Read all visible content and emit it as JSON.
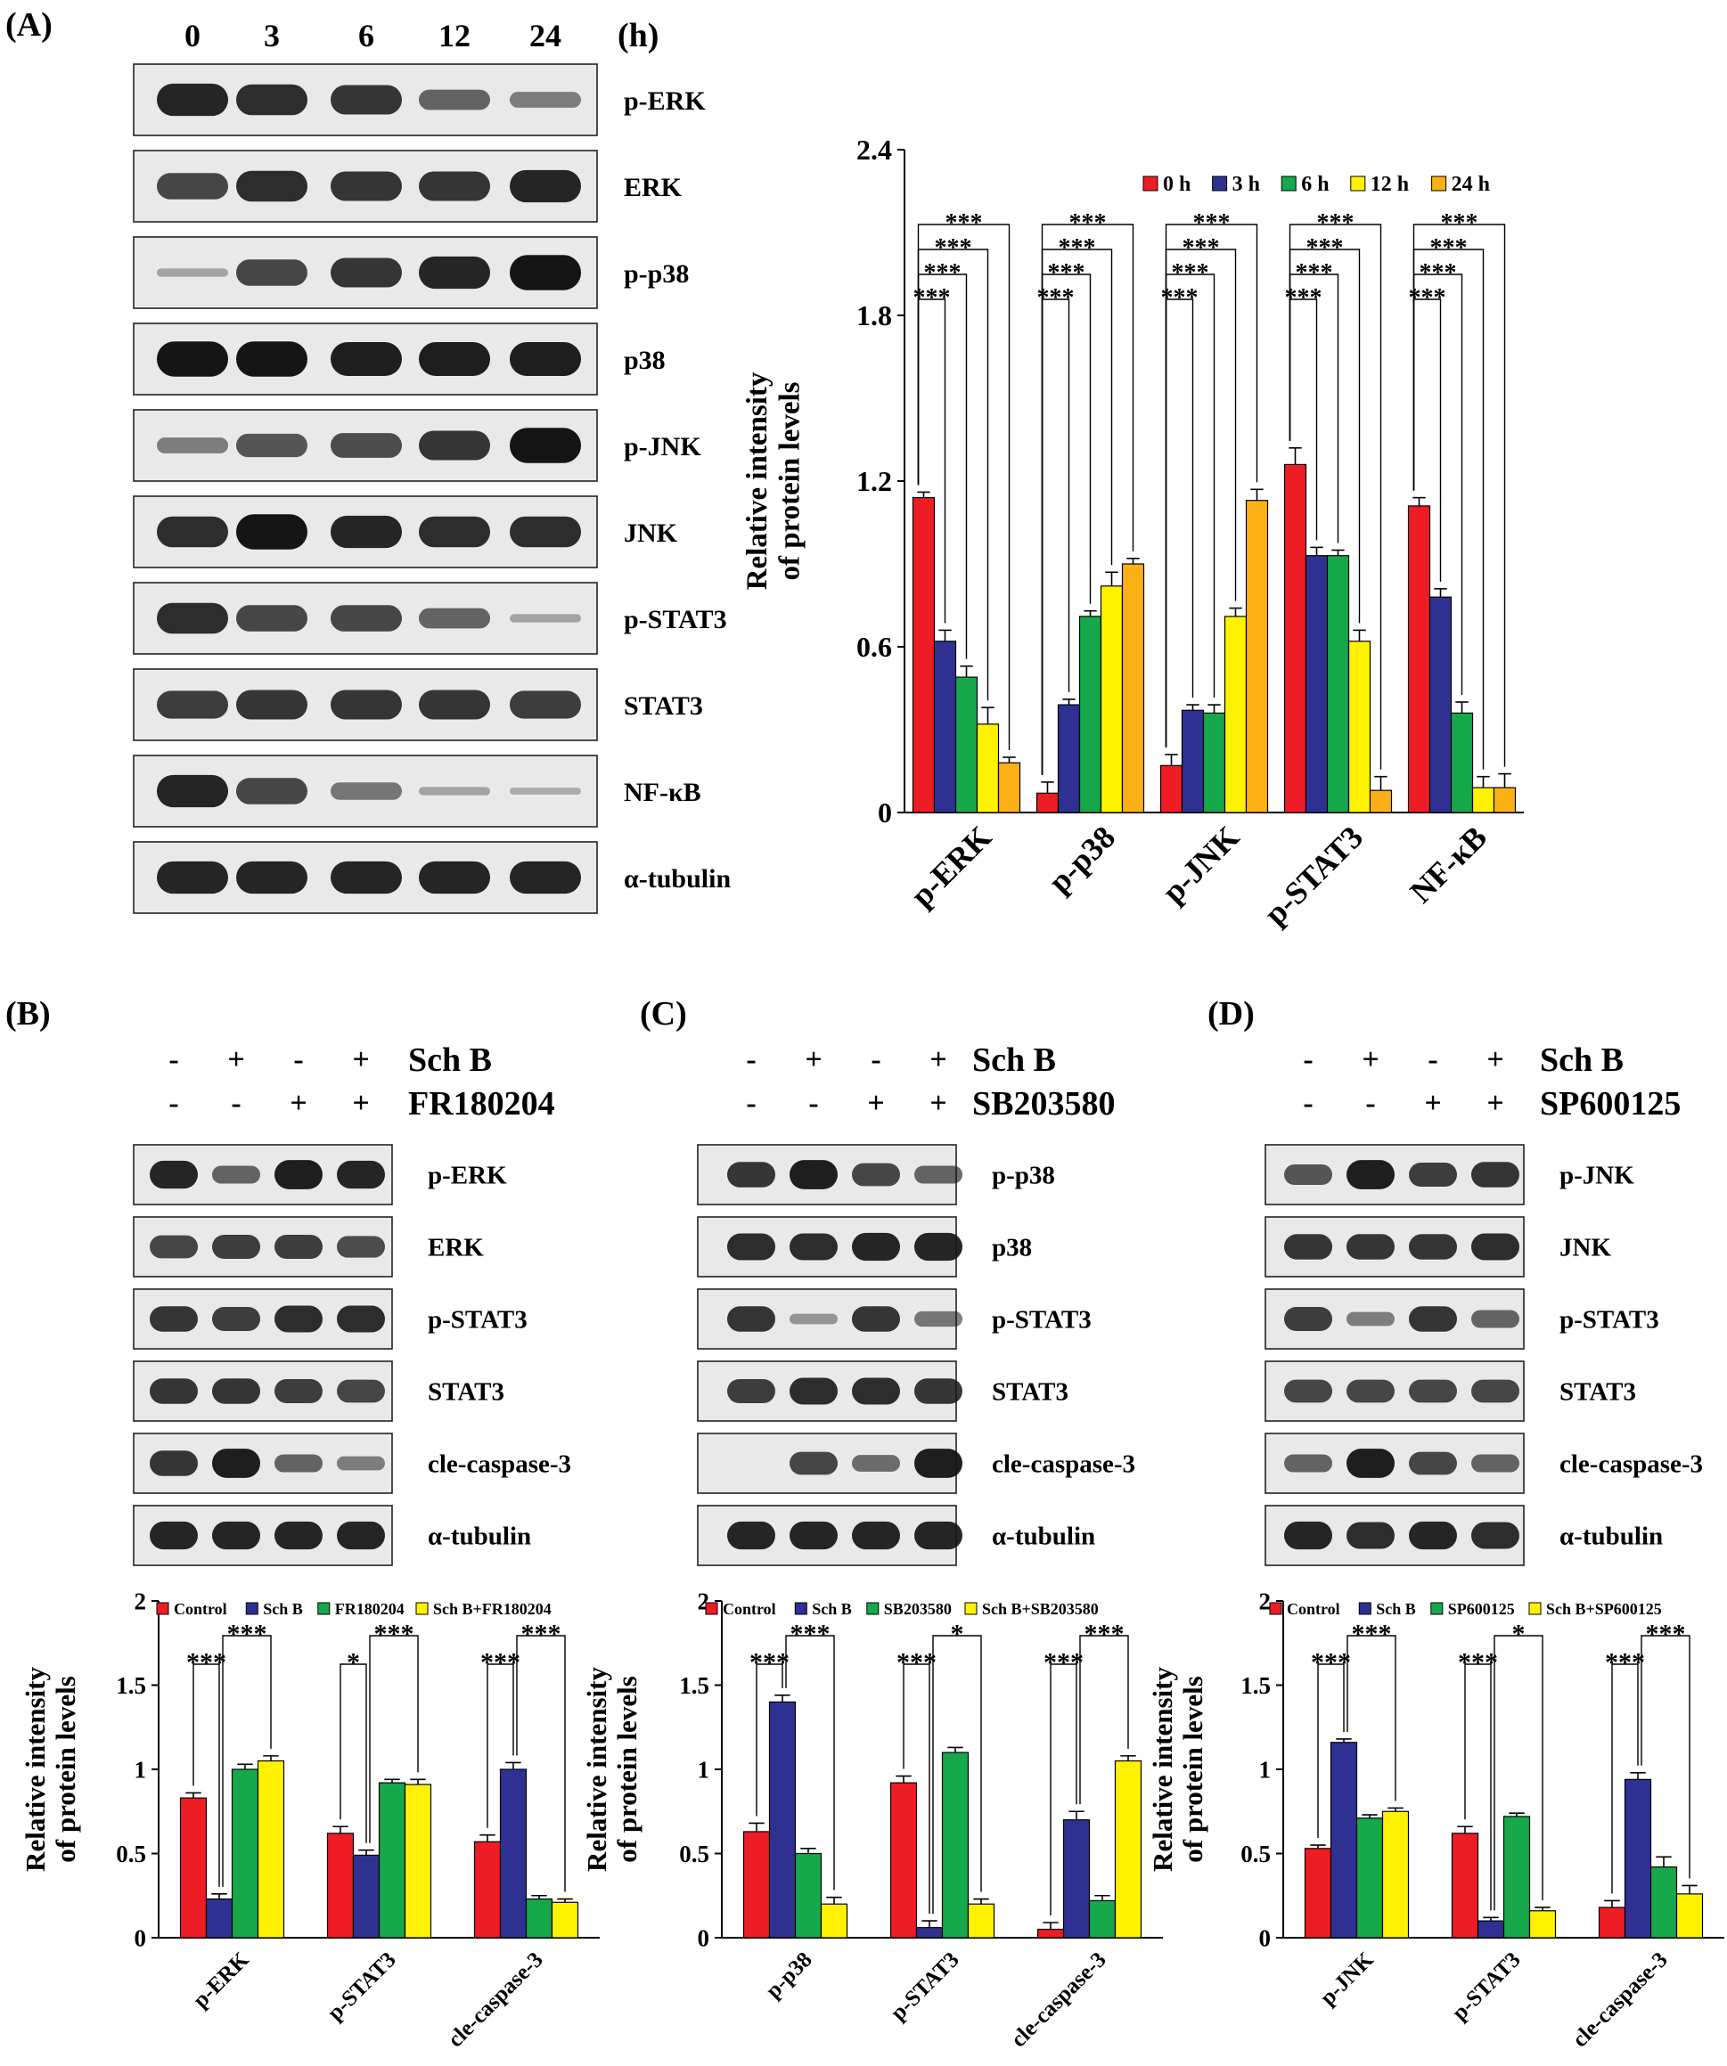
{
  "colors": {
    "red": "#ee1c24",
    "blue": "#2e3192",
    "green": "#16a84a",
    "yellow": "#fff200",
    "orange": "#fbb116"
  },
  "panel_a": {
    "label": "(A)",
    "lanes": [
      "0",
      "3",
      "6",
      "12",
      "24"
    ],
    "blots": [
      "p-ERK",
      "ERK",
      "p-p38",
      "p38",
      "p-JNK",
      "JNK",
      "p-STAT3",
      "STAT3",
      "NF-κB",
      "α-tubulin"
    ],
    "band_intensity": [
      [
        0.9,
        0.85,
        0.8,
        0.5,
        0.35
      ],
      [
        0.7,
        0.85,
        0.8,
        0.8,
        0.9
      ],
      [
        0.1,
        0.7,
        0.8,
        0.9,
        1.0
      ],
      [
        1.0,
        1.0,
        0.95,
        0.95,
        0.95
      ],
      [
        0.35,
        0.6,
        0.65,
        0.8,
        1.0
      ],
      [
        0.85,
        1.0,
        0.9,
        0.85,
        0.85
      ],
      [
        0.85,
        0.7,
        0.7,
        0.5,
        0.1
      ],
      [
        0.75,
        0.8,
        0.8,
        0.8,
        0.75
      ],
      [
        0.9,
        0.7,
        0.4,
        0.1,
        0.05
      ],
      [
        0.9,
        0.9,
        0.9,
        0.9,
        0.9
      ]
    ]
  },
  "panel_b": {
    "label": "(B)",
    "treat1": "Sch B",
    "treat2": "FR180204",
    "signs1": [
      "-",
      "+",
      "-",
      "+"
    ],
    "signs2": [
      "-",
      "-",
      "+",
      "+"
    ],
    "blots": [
      "p-ERK",
      "ERK",
      "p-STAT3",
      "STAT3",
      "cle-caspase-3",
      "α-tubulin"
    ],
    "band_intensity": [
      [
        0.9,
        0.5,
        0.95,
        0.9
      ],
      [
        0.7,
        0.75,
        0.75,
        0.65
      ],
      [
        0.8,
        0.75,
        0.85,
        0.85
      ],
      [
        0.8,
        0.8,
        0.75,
        0.7
      ],
      [
        0.8,
        0.95,
        0.5,
        0.35
      ],
      [
        0.9,
        0.9,
        0.9,
        0.9
      ]
    ]
  },
  "panel_c": {
    "label": "(C)",
    "treat1": "Sch B",
    "treat2": "SB203580",
    "signs1": [
      "-",
      "+",
      "-",
      "+"
    ],
    "signs2": [
      "-",
      "-",
      "+",
      "+"
    ],
    "blots": [
      "p-p38",
      "p38",
      "p-STAT3",
      "STAT3",
      "cle-caspase-3",
      "α-tubulin"
    ],
    "band_intensity": [
      [
        0.8,
        0.95,
        0.7,
        0.5
      ],
      [
        0.85,
        0.85,
        0.9,
        0.9
      ],
      [
        0.8,
        0.2,
        0.8,
        0.4
      ],
      [
        0.75,
        0.85,
        0.85,
        0.8
      ],
      [
        0.0,
        0.7,
        0.45,
        0.95
      ],
      [
        0.9,
        0.9,
        0.9,
        0.9
      ]
    ]
  },
  "panel_d": {
    "label": "(D)",
    "treat1": "Sch B",
    "treat2": "SP600125",
    "signs1": [
      "-",
      "+",
      "-",
      "+"
    ],
    "signs2": [
      "-",
      "-",
      "+",
      "+"
    ],
    "blots": [
      "p-JNK",
      "JNK",
      "p-STAT3",
      "STAT3",
      "cle-caspase-3",
      "α-tubulin"
    ],
    "band_intensity": [
      [
        0.6,
        0.95,
        0.75,
        0.8
      ],
      [
        0.8,
        0.8,
        0.8,
        0.85
      ],
      [
        0.75,
        0.35,
        0.8,
        0.5
      ],
      [
        0.7,
        0.7,
        0.7,
        0.7
      ],
      [
        0.5,
        0.95,
        0.7,
        0.5
      ],
      [
        0.9,
        0.85,
        0.9,
        0.85
      ]
    ]
  },
  "chart_data": [
    {
      "id": "h",
      "type": "bar",
      "label": "(h)",
      "ylabel": "Relative intensity of protein levels",
      "ylim": [
        0,
        2.4
      ],
      "yticks": [
        "0",
        "0.6",
        "1.2",
        "1.8",
        "2.4"
      ],
      "categories": [
        "p-ERK",
        "p-p38",
        "p-JNK",
        "p-STAT3",
        "NF-κB"
      ],
      "legend_position": "top-right",
      "series": [
        {
          "name": "0 h",
          "color": "#ee1c24",
          "values": [
            1.14,
            0.07,
            0.17,
            1.26,
            1.11
          ],
          "errors": [
            0.02,
            0.04,
            0.04,
            0.06,
            0.03
          ]
        },
        {
          "name": "3 h",
          "color": "#2e3192",
          "values": [
            0.62,
            0.39,
            0.37,
            0.93,
            0.78
          ],
          "errors": [
            0.04,
            0.02,
            0.02,
            0.03,
            0.03
          ]
        },
        {
          "name": "6 h",
          "color": "#16a84a",
          "values": [
            0.49,
            0.71,
            0.36,
            0.93,
            0.36
          ],
          "errors": [
            0.04,
            0.02,
            0.03,
            0.02,
            0.04
          ]
        },
        {
          "name": "12 h",
          "color": "#fff200",
          "values": [
            0.32,
            0.82,
            0.71,
            0.62,
            0.09
          ],
          "errors": [
            0.06,
            0.05,
            0.03,
            0.04,
            0.04
          ]
        },
        {
          "name": "24 h",
          "color": "#fbb116",
          "values": [
            0.18,
            0.9,
            1.13,
            0.08,
            0.09
          ],
          "errors": [
            0.02,
            0.02,
            0.04,
            0.05,
            0.05
          ]
        }
      ],
      "significance": "***"
    },
    {
      "id": "b",
      "type": "bar",
      "ylabel": "Relative intensity of protein levels",
      "ylim": [
        0,
        2
      ],
      "yticks": [
        "0",
        "0.5",
        "1",
        "1.5",
        "2"
      ],
      "categories": [
        "p-ERK",
        "p-STAT3",
        "cle-caspase-3"
      ],
      "legend_position": "top",
      "series": [
        {
          "name": "Control",
          "color": "#ee1c24",
          "values": [
            0.83,
            0.62,
            0.57
          ],
          "errors": [
            0.03,
            0.04,
            0.04
          ]
        },
        {
          "name": "Sch B",
          "color": "#2e3192",
          "values": [
            0.23,
            0.49,
            1.0
          ],
          "errors": [
            0.03,
            0.03,
            0.04
          ]
        },
        {
          "name": "FR180204",
          "color": "#16a84a",
          "values": [
            1.0,
            0.92,
            0.23
          ],
          "errors": [
            0.03,
            0.02,
            0.02
          ]
        },
        {
          "name": "Sch B+FR180204",
          "color": "#fff200",
          "values": [
            1.05,
            0.91,
            0.21
          ],
          "errors": [
            0.03,
            0.03,
            0.02
          ]
        }
      ],
      "significance": [
        {
          "a": "***",
          "b": "***"
        },
        {
          "a": "*",
          "b": "***"
        },
        {
          "a": "***",
          "b": "***"
        }
      ]
    },
    {
      "id": "c",
      "type": "bar",
      "ylabel": "Relative intensity of protein levels",
      "ylim": [
        0,
        2
      ],
      "yticks": [
        "0",
        "0.5",
        "1",
        "1.5",
        "2"
      ],
      "categories": [
        "p-p38",
        "p-STAT3",
        "cle-caspase-3"
      ],
      "legend_position": "top",
      "series": [
        {
          "name": "Control",
          "color": "#ee1c24",
          "values": [
            0.63,
            0.92,
            0.05
          ],
          "errors": [
            0.05,
            0.04,
            0.04
          ]
        },
        {
          "name": "Sch B",
          "color": "#2e3192",
          "values": [
            1.4,
            0.06,
            0.7
          ],
          "errors": [
            0.04,
            0.04,
            0.05
          ]
        },
        {
          "name": "SB203580",
          "color": "#16a84a",
          "values": [
            0.5,
            1.1,
            0.22
          ],
          "errors": [
            0.03,
            0.03,
            0.03
          ]
        },
        {
          "name": "Sch B+SB203580",
          "color": "#fff200",
          "values": [
            0.2,
            0.2,
            1.05
          ],
          "errors": [
            0.04,
            0.03,
            0.03
          ]
        }
      ],
      "significance": [
        {
          "a": "***",
          "b": "***"
        },
        {
          "a": "***",
          "b": "*"
        },
        {
          "a": "***",
          "b": "***"
        }
      ]
    },
    {
      "id": "d",
      "type": "bar",
      "ylabel": "Relative intensity of protein levels",
      "ylim": [
        0,
        2
      ],
      "yticks": [
        "0",
        "0.5",
        "1",
        "1.5",
        "2"
      ],
      "categories": [
        "p-JNK",
        "p-STAT3",
        "cle-caspase-3"
      ],
      "legend_position": "top",
      "series": [
        {
          "name": "Control",
          "color": "#ee1c24",
          "values": [
            0.53,
            0.62,
            0.18
          ],
          "errors": [
            0.02,
            0.04,
            0.04
          ]
        },
        {
          "name": "Sch B",
          "color": "#2e3192",
          "values": [
            1.16,
            0.1,
            0.94
          ],
          "errors": [
            0.02,
            0.02,
            0.04
          ]
        },
        {
          "name": "SP600125",
          "color": "#16a84a",
          "values": [
            0.71,
            0.72,
            0.42
          ],
          "errors": [
            0.02,
            0.02,
            0.06
          ]
        },
        {
          "name": "Sch B+SP600125",
          "color": "#fff200",
          "values": [
            0.75,
            0.16,
            0.26
          ],
          "errors": [
            0.02,
            0.02,
            0.05
          ]
        }
      ],
      "significance": [
        {
          "a": "***",
          "b": "***"
        },
        {
          "a": "***",
          "b": "*"
        },
        {
          "a": "***",
          "b": "***"
        }
      ]
    }
  ]
}
